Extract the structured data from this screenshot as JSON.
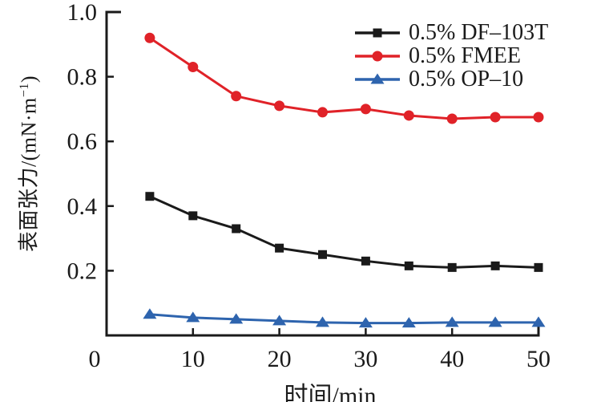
{
  "chart_data": {
    "type": "line",
    "title": "",
    "xlabel": "时间/min",
    "ylabel": "表面张力/(mN·m−1)",
    "ylabel_parts": {
      "prefix": "表面张力/(mN·m",
      "superscript": "−1",
      "suffix": ")"
    },
    "x": [
      5,
      10,
      15,
      20,
      25,
      30,
      35,
      40,
      45,
      50
    ],
    "xlim": [
      0,
      50
    ],
    "ylim": [
      0,
      1.0
    ],
    "xtick_values": [
      0,
      10,
      20,
      30,
      40,
      50
    ],
    "xtick_labels": [
      "0",
      "10",
      "20",
      "30",
      "40",
      "50"
    ],
    "ytick_values": [
      0.2,
      0.4,
      0.6,
      0.8,
      1.0
    ],
    "ytick_labels": [
      "0.2",
      "0.4",
      "0.6",
      "0.8",
      "1.0"
    ],
    "grid": false,
    "legend_position": "top-right-inside",
    "axis_color": "#1a1a1a",
    "series": [
      {
        "name": "0.5% DF–103T",
        "marker": "square",
        "color": "#1a1a1a",
        "values": [
          0.43,
          0.37,
          0.33,
          0.27,
          0.25,
          0.23,
          0.215,
          0.21,
          0.215,
          0.21
        ]
      },
      {
        "name": "0.5% FMEE",
        "marker": "circle",
        "color": "#e02228",
        "values": [
          0.92,
          0.83,
          0.74,
          0.71,
          0.69,
          0.7,
          0.68,
          0.67,
          0.675,
          0.675
        ]
      },
      {
        "name": "0.5% OP–10",
        "marker": "triangle",
        "color": "#2e64ae",
        "values": [
          0.065,
          0.055,
          0.05,
          0.045,
          0.04,
          0.038,
          0.038,
          0.04,
          0.04,
          0.04
        ]
      }
    ]
  }
}
